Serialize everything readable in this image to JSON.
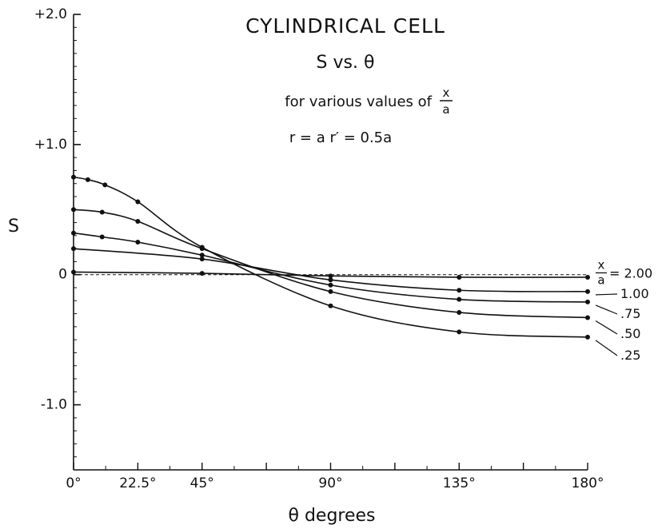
{
  "chart_data": {
    "type": "line",
    "title": "CYLINDRICAL CELL",
    "subtitle": "S vs. θ",
    "subtitle2_prefix": "for various values of",
    "fraction": {
      "num": "x",
      "den": "a"
    },
    "subtitle3": "r = a   r′ = 0.5a",
    "xlabel": "θ degrees",
    "ylabel": "S",
    "xlim": [
      0,
      180
    ],
    "ylim": [
      -1.5,
      2.0
    ],
    "x_ticks": [
      {
        "value": 0,
        "label": "0°"
      },
      {
        "value": 22.5,
        "label": "22.5°"
      },
      {
        "value": 45,
        "label": "45°"
      },
      {
        "value": 90,
        "label": "90°"
      },
      {
        "value": 135,
        "label": "135°"
      },
      {
        "value": 180,
        "label": "180°"
      }
    ],
    "y_ticks": [
      {
        "value": 2.0,
        "label": "+2.0"
      },
      {
        "value": 1.0,
        "label": "+1.0"
      },
      {
        "value": 0,
        "label": "0"
      },
      {
        "value": -1.0,
        "label": "-1.0"
      }
    ],
    "legend_prefix": "= 2.00",
    "series": [
      {
        "name": "2.00",
        "x": [
          0,
          45,
          90,
          135,
          180
        ],
        "y": [
          0.02,
          0.01,
          -0.01,
          -0.02,
          -0.02
        ]
      },
      {
        "name": "1.00",
        "x": [
          0,
          45,
          90,
          135,
          180
        ],
        "y": [
          0.2,
          0.12,
          -0.04,
          -0.12,
          -0.13
        ]
      },
      {
        "name": ".75",
        "x": [
          0,
          10,
          22.5,
          45,
          90,
          135,
          180
        ],
        "y": [
          0.32,
          0.29,
          0.25,
          0.15,
          -0.08,
          -0.19,
          -0.21
        ]
      },
      {
        "name": ".50",
        "x": [
          0,
          10,
          22.5,
          45,
          90,
          135,
          180
        ],
        "y": [
          0.5,
          0.48,
          0.41,
          0.2,
          -0.13,
          -0.29,
          -0.33
        ]
      },
      {
        "name": ".25",
        "x": [
          0,
          5,
          11,
          22.5,
          45,
          90,
          135,
          180
        ],
        "y": [
          0.75,
          0.73,
          0.69,
          0.56,
          0.21,
          -0.24,
          -0.44,
          -0.48
        ]
      }
    ],
    "reference_line": {
      "y": 0,
      "style": "dashed"
    },
    "grid": false
  }
}
